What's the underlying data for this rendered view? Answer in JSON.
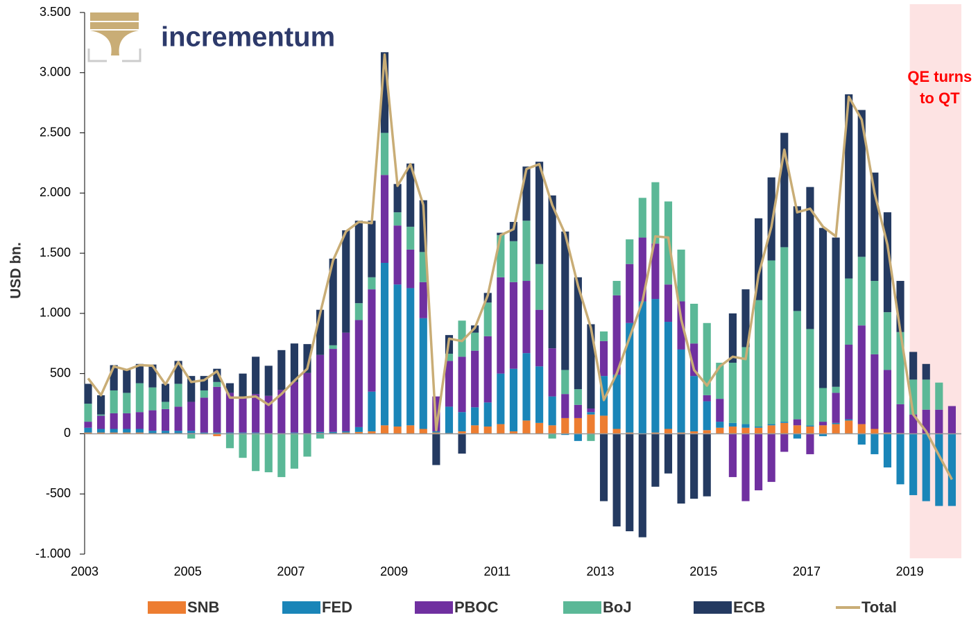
{
  "chart_data": {
    "type": "bar",
    "stacked": true,
    "logo": "incrementum",
    "ylabel": "USD bn.",
    "annotation": {
      "lines": [
        "QE turns",
        "to QT"
      ],
      "x_range": [
        2019,
        2020
      ],
      "color": "#ff0000",
      "band_color": "#fde3e3"
    },
    "xlim": [
      2003,
      2020
    ],
    "xticks": [
      2003,
      2005,
      2007,
      2009,
      2011,
      2013,
      2015,
      2017,
      2019
    ],
    "ylim": [
      -1000,
      3500
    ],
    "yticks": [
      {
        "value": -1000,
        "label": "-1.000"
      },
      -500,
      0,
      500,
      {
        "value": 1000,
        "label": "1.000"
      },
      {
        "value": 1500,
        "label": "1.500"
      },
      {
        "value": 2000,
        "label": "2.000"
      },
      {
        "value": 2500,
        "label": "2.500"
      },
      {
        "value": 3000,
        "label": "3.000"
      },
      {
        "value": 3500,
        "label": "3.500"
      }
    ],
    "legend": "bottom",
    "x": [
      2003,
      2003.25,
      2003.5,
      2003.75,
      2004,
      2004.25,
      2004.5,
      2004.75,
      2005,
      2005.25,
      2005.5,
      2005.75,
      2006,
      2006.25,
      2006.5,
      2006.75,
      2007,
      2007.25,
      2007.5,
      2007.75,
      2008,
      2008.25,
      2008.5,
      2008.75,
      2009,
      2009.25,
      2009.5,
      2009.75,
      2010,
      2010.25,
      2010.5,
      2010.75,
      2011,
      2011.25,
      2011.5,
      2011.75,
      2012,
      2012.25,
      2012.5,
      2012.75,
      2013,
      2013.25,
      2013.5,
      2013.75,
      2014,
      2014.25,
      2014.5,
      2014.75,
      2015,
      2015.25,
      2015.5,
      2015.75,
      2016,
      2016.25,
      2016.5,
      2016.75,
      2017,
      2017.25,
      2017.5,
      2017.75,
      2018,
      2018.25,
      2018.5,
      2018.75,
      2019,
      2019.25,
      2019.5,
      2019.75
    ],
    "series": [
      {
        "name": "SNB",
        "color": "#ed7d31",
        "values": [
          10,
          10,
          10,
          10,
          10,
          5,
          5,
          5,
          5,
          -5,
          -20,
          0,
          0,
          0,
          0,
          0,
          0,
          0,
          5,
          5,
          10,
          15,
          20,
          70,
          60,
          70,
          40,
          10,
          5,
          20,
          70,
          60,
          80,
          20,
          110,
          90,
          70,
          130,
          130,
          160,
          150,
          40,
          10,
          0,
          10,
          40,
          10,
          20,
          30,
          50,
          60,
          50,
          50,
          70,
          90,
          70,
          60,
          70,
          80,
          110,
          80,
          40,
          10,
          5,
          0,
          0,
          0,
          0
        ]
      },
      {
        "name": "FED",
        "color": "#1a85b8",
        "values": [
          40,
          30,
          30,
          30,
          30,
          20,
          20,
          20,
          20,
          10,
          10,
          10,
          10,
          10,
          5,
          5,
          10,
          5,
          10,
          10,
          10,
          40,
          330,
          1350,
          1180,
          1140,
          920,
          10,
          220,
          160,
          150,
          200,
          420,
          520,
          560,
          470,
          240,
          -10,
          -60,
          20,
          330,
          450,
          910,
          1100,
          1110,
          890,
          690,
          460,
          240,
          50,
          30,
          30,
          10,
          10,
          10,
          -40,
          10,
          -20,
          10,
          10,
          -90,
          -170,
          -280,
          -420,
          -510,
          -560,
          -600,
          -600
        ]
      },
      {
        "name": "PBOC",
        "color": "#7030a0",
        "values": [
          50,
          110,
          130,
          130,
          140,
          170,
          180,
          200,
          240,
          290,
          380,
          330,
          300,
          320,
          310,
          360,
          420,
          500,
          640,
          690,
          820,
          890,
          850,
          730,
          490,
          320,
          300,
          290,
          380,
          460,
          470,
          550,
          800,
          720,
          600,
          470,
          400,
          200,
          110,
          30,
          290,
          660,
          490,
          530,
          460,
          310,
          400,
          270,
          50,
          190,
          -360,
          -560,
          -470,
          -400,
          -150,
          50,
          -170,
          30,
          250,
          620,
          820,
          620,
          520,
          240,
          160,
          200,
          200,
          230
        ]
      },
      {
        "name": "BoJ",
        "color": "#5bb897",
        "values": [
          150,
          10,
          190,
          170,
          240,
          190,
          60,
          190,
          -40,
          60,
          40,
          -120,
          -200,
          -310,
          -320,
          -360,
          -290,
          -190,
          -40,
          30,
          0,
          140,
          100,
          350,
          110,
          190,
          250,
          0,
          60,
          300,
          150,
          280,
          350,
          340,
          500,
          380,
          -40,
          200,
          130,
          -60,
          80,
          120,
          205,
          330,
          510,
          690,
          430,
          330,
          600,
          300,
          500,
          640,
          1050,
          1360,
          1450,
          900,
          800,
          280,
          50,
          550,
          570,
          610,
          480,
          600,
          290,
          250,
          225,
          0
        ]
      },
      {
        "name": "ECB",
        "color": "#243a61",
        "values": [
          165,
          160,
          210,
          190,
          160,
          190,
          150,
          190,
          215,
          120,
          110,
          80,
          190,
          310,
          250,
          330,
          320,
          240,
          375,
          720,
          850,
          685,
          470,
          670,
          235,
          525,
          430,
          -260,
          155,
          -165,
          60,
          80,
          20,
          160,
          450,
          850,
          1270,
          1150,
          930,
          700,
          -560,
          -770,
          -810,
          -860,
          -440,
          -330,
          -580,
          -540,
          -520,
          0,
          410,
          480,
          680,
          690,
          950,
          870,
          1180,
          1330,
          1240,
          1530,
          1220,
          900,
          830,
          425,
          230,
          130,
          0,
          0
        ]
      },
      {
        "name": "Total",
        "type": "line",
        "color": "#c9ad76",
        "values": [
          460,
          320,
          560,
          530,
          570,
          565,
          410,
          595,
          430,
          445,
          520,
          300,
          300,
          310,
          240,
          330,
          440,
          540,
          1000,
          1440,
          1680,
          1760,
          1750,
          3150,
          2060,
          2240,
          1900,
          30,
          790,
          770,
          880,
          1150,
          1650,
          1700,
          2200,
          2240,
          1900,
          1660,
          1230,
          880,
          280,
          500,
          800,
          1100,
          1640,
          1630,
          950,
          530,
          400,
          560,
          640,
          620,
          1320,
          1720,
          2360,
          1840,
          1870,
          1720,
          1640,
          2800,
          2610,
          2000,
          1570,
          850,
          160,
          20,
          -180,
          -380
        ]
      }
    ]
  }
}
